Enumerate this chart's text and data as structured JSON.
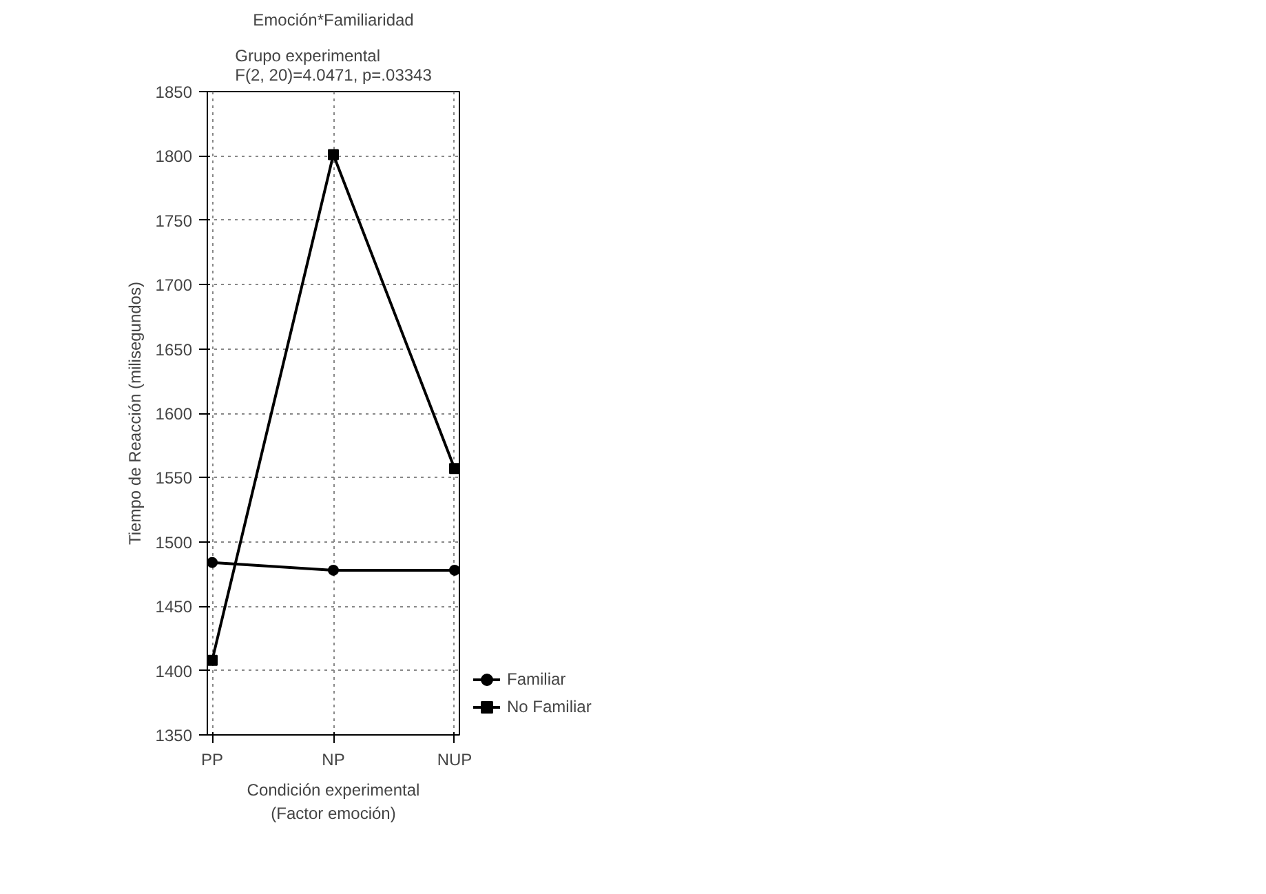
{
  "chart_data": {
    "type": "line",
    "title": "Emoción*Familiaridad",
    "subtitle": "Grupo experimental\nF(2, 20)=4.0471, p=.03343",
    "xlabel": "Condición experimental\n(Factor emoción)",
    "ylabel": "Tiempo de Reacción (milisegundos)",
    "categories": [
      "PP",
      "NP",
      "NUP"
    ],
    "series": [
      {
        "name": "Familiar",
        "color": "#000000",
        "marker": "circle",
        "values": [
          1484,
          1478,
          1478
        ]
      },
      {
        "name": "No Familiar",
        "color": "#000000",
        "marker": "square",
        "values": [
          1408,
          1801,
          1557
        ]
      }
    ],
    "ylim": [
      1350,
      1850
    ],
    "yticks": [
      1350,
      1400,
      1450,
      1500,
      1550,
      1600,
      1650,
      1700,
      1750,
      1800,
      1850
    ],
    "grid": true,
    "legend": "bottom right",
    "line_style": "solid"
  }
}
